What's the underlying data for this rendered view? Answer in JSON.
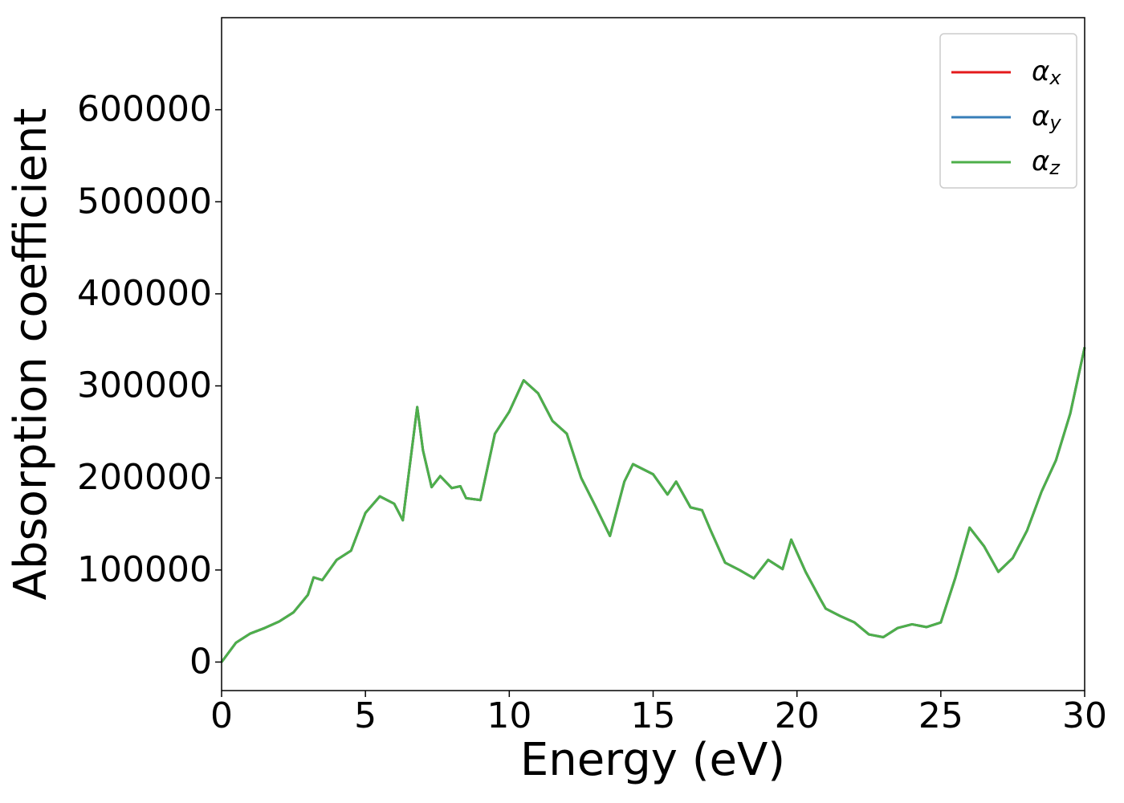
{
  "chart_data": {
    "type": "line",
    "xlabel": "Energy (eV)",
    "ylabel": "Absorption coefficient",
    "x": [
      0,
      0.5,
      1.0,
      1.5,
      2.0,
      2.5,
      3.0,
      3.2,
      3.5,
      4.0,
      4.5,
      5.0,
      5.5,
      6.0,
      6.3,
      6.8,
      7.0,
      7.3,
      7.6,
      8.0,
      8.3,
      8.5,
      9.0,
      9.5,
      10.0,
      10.5,
      11.0,
      11.5,
      12.0,
      12.5,
      13.0,
      13.5,
      14.0,
      14.3,
      15.0,
      15.5,
      15.8,
      16.3,
      16.7,
      17.0,
      17.5,
      18.0,
      18.5,
      19.0,
      19.5,
      19.8,
      20.3,
      20.8,
      21.0,
      21.5,
      22.0,
      22.5,
      23.0,
      23.5,
      24.0,
      24.5,
      25.0,
      25.5,
      26.0,
      26.5,
      27.0,
      27.5,
      28.0,
      28.5,
      29.0,
      29.5,
      30.0
    ],
    "series": [
      {
        "name": "αx",
        "color": "#e41a1c",
        "values": [
          0,
          21000,
          31000,
          37000,
          44000,
          54000,
          73000,
          92000,
          89000,
          111000,
          121000,
          162000,
          180000,
          172000,
          154000,
          277000,
          230000,
          190000,
          202000,
          189000,
          191000,
          178000,
          176000,
          248000,
          272000,
          306000,
          292000,
          262000,
          248000,
          200000,
          169000,
          137000,
          196000,
          215000,
          204000,
          182000,
          196000,
          168000,
          165000,
          143000,
          108000,
          100000,
          91000,
          111000,
          101000,
          133000,
          98000,
          69000,
          58000,
          50000,
          43000,
          30000,
          27000,
          37000,
          41000,
          38000,
          43000,
          91000,
          146000,
          126000,
          98000,
          113000,
          143000,
          185000,
          219000,
          270000,
          342000
        ]
      },
      {
        "name": "αy",
        "color": "#377eb8",
        "values": [
          0,
          21000,
          31000,
          37000,
          44000,
          54000,
          73000,
          92000,
          89000,
          111000,
          121000,
          162000,
          180000,
          172000,
          154000,
          277000,
          230000,
          190000,
          202000,
          189000,
          191000,
          178000,
          176000,
          248000,
          272000,
          306000,
          292000,
          262000,
          248000,
          200000,
          169000,
          137000,
          196000,
          215000,
          204000,
          182000,
          196000,
          168000,
          165000,
          143000,
          108000,
          100000,
          91000,
          111000,
          101000,
          133000,
          98000,
          69000,
          58000,
          50000,
          43000,
          30000,
          27000,
          37000,
          41000,
          38000,
          43000,
          91000,
          146000,
          126000,
          98000,
          113000,
          143000,
          185000,
          219000,
          270000,
          342000
        ]
      },
      {
        "name": "αz",
        "color": "#4daf4a",
        "values": [
          0,
          21000,
          31000,
          37000,
          44000,
          54000,
          73000,
          92000,
          89000,
          111000,
          121000,
          162000,
          180000,
          172000,
          154000,
          277000,
          230000,
          190000,
          202000,
          189000,
          191000,
          178000,
          176000,
          248000,
          272000,
          306000,
          292000,
          262000,
          248000,
          200000,
          169000,
          137000,
          196000,
          215000,
          204000,
          182000,
          196000,
          168000,
          165000,
          143000,
          108000,
          100000,
          91000,
          111000,
          101000,
          133000,
          98000,
          69000,
          58000,
          50000,
          43000,
          30000,
          27000,
          37000,
          41000,
          38000,
          43000,
          91000,
          146000,
          126000,
          98000,
          113000,
          143000,
          185000,
          219000,
          270000,
          342000
        ]
      }
    ],
    "xlim": [
      0,
      30
    ],
    "xticks": [
      0,
      5,
      10,
      15,
      20,
      25,
      30
    ],
    "ylim": [
      -31000,
      700000
    ],
    "yticks": [
      0,
      100000,
      200000,
      300000,
      400000,
      500000,
      600000
    ],
    "grid": false,
    "legend": "upper right"
  }
}
